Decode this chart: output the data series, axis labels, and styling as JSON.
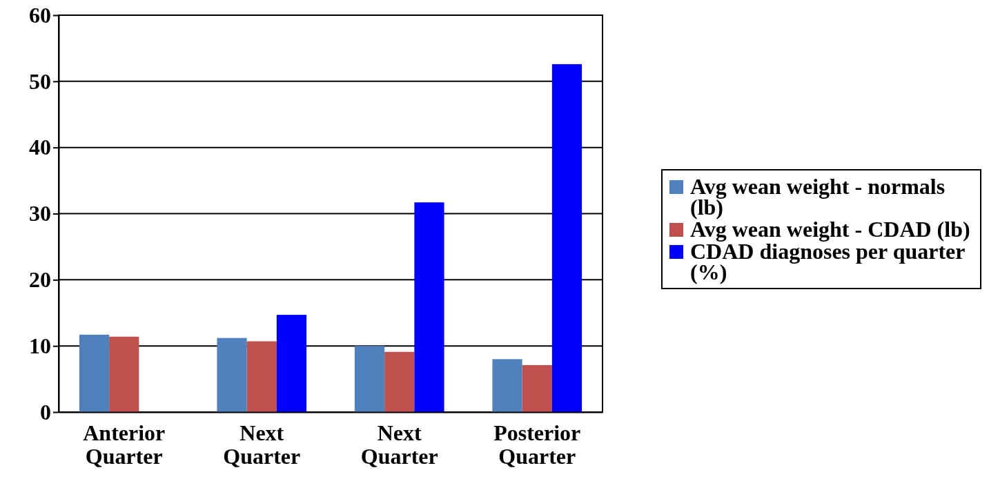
{
  "chart_data": {
    "type": "bar",
    "categories": [
      "Anterior Quarter",
      "Next Quarter",
      "Next Quarter",
      "Posterior Quarter"
    ],
    "series": [
      {
        "name": "Avg wean weight - normals (lb)",
        "color": "#4f81bd",
        "values": [
          11.7,
          11.2,
          10.0,
          8.0
        ]
      },
      {
        "name": "Avg wean weight - CDAD (lb)",
        "color": "#c0504d",
        "values": [
          11.4,
          10.7,
          9.1,
          7.1
        ]
      },
      {
        "name": "CDAD diagnoses per quarter (%)",
        "color": "#0000ff",
        "values": [
          0,
          14.7,
          31.7,
          52.6
        ]
      }
    ],
    "ylim": [
      0,
      60
    ],
    "yticks": [
      0,
      10,
      20,
      30,
      40,
      50,
      60
    ],
    "grid": "y",
    "legend": "right"
  }
}
